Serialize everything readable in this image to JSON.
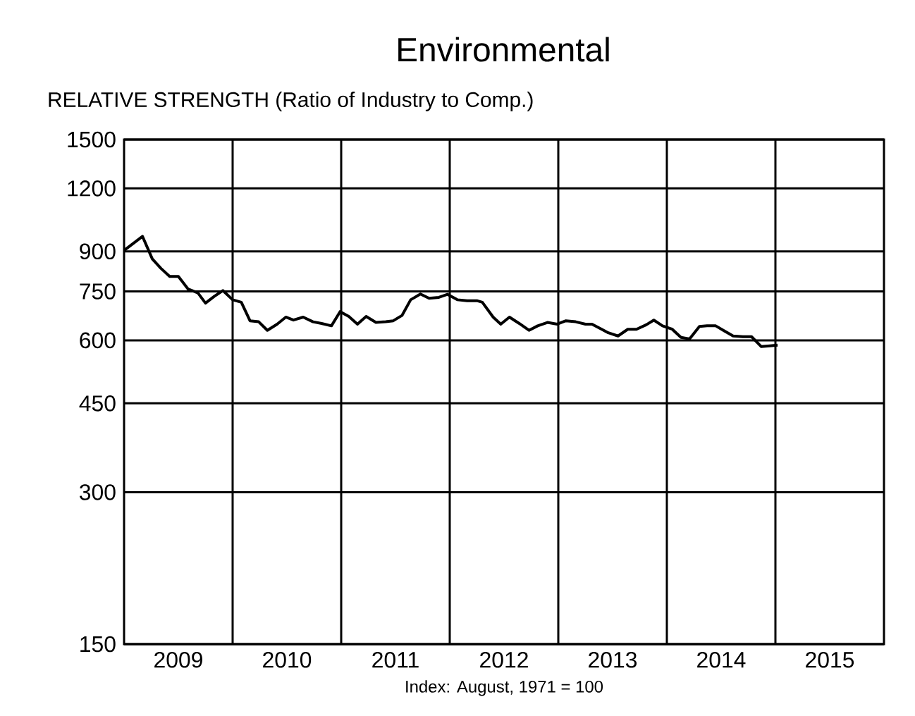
{
  "chart_data": {
    "type": "line",
    "title": "Environmental",
    "subtitle": "RELATIVE STRENGTH (Ratio of Industry to Comp.)",
    "xlabel": "Index:  August,  1971  =  100",
    "x": [
      2009.0,
      2009.17,
      2009.26,
      2009.34,
      2009.42,
      2009.5,
      2009.59,
      2009.68,
      2009.75,
      2009.83,
      2009.91,
      2010.0,
      2010.08,
      2010.16,
      2010.24,
      2010.32,
      2010.41,
      2010.49,
      2010.56,
      2010.65,
      2010.74,
      2010.82,
      2010.91,
      2010.99,
      2011.07,
      2011.15,
      2011.23,
      2011.32,
      2011.41,
      2011.48,
      2011.56,
      2011.64,
      2011.73,
      2011.81,
      2011.9,
      2011.98,
      2012.07,
      2012.16,
      2012.25,
      2012.3,
      2012.4,
      2012.47,
      2012.55,
      2012.64,
      2012.73,
      2012.81,
      2012.9,
      2012.99,
      2013.07,
      2013.16,
      2013.25,
      2013.31,
      2013.4,
      2013.46,
      2013.55,
      2013.64,
      2013.72,
      2013.81,
      2013.88,
      2013.96,
      2014.05,
      2014.13,
      2014.21,
      2014.3,
      2014.37,
      2014.45,
      2014.52,
      2014.61,
      2014.7,
      2014.78,
      2014.87,
      2014.95,
      2015.02
    ],
    "series": [
      {
        "color": "#000000",
        "values": [
          904,
          964,
          870,
          833,
          803,
          803,
          758,
          745,
          711,
          733,
          753,
          722,
          714,
          656,
          653,
          628,
          646,
          667,
          658,
          667,
          653,
          648,
          641,
          684,
          669,
          646,
          669,
          651,
          653,
          656,
          672,
          722,
          741,
          727,
          730,
          740,
          722,
          719,
          719,
          714,
          667,
          646,
          667,
          648,
          628,
          641,
          651,
          646,
          656,
          653,
          646,
          646,
          631,
          621,
          612,
          631,
          631,
          644,
          658,
          641,
          631,
          608,
          604,
          639,
          641,
          641,
          628,
          612,
          610,
          610,
          583,
          585,
          587
        ]
      }
    ],
    "log": true,
    "ylim": [
      150,
      1500
    ],
    "yticks": [
      150,
      300,
      450,
      600,
      750,
      900,
      1200,
      1500
    ],
    "xlim": [
      2009,
      2016
    ],
    "xticks": [
      {
        "value": 2009.5,
        "label": "2009"
      },
      {
        "value": 2010,
        "label": null
      },
      {
        "value": 2010.5,
        "label": "2010"
      },
      {
        "value": 2011,
        "label": null
      },
      {
        "value": 2011.5,
        "label": "2011"
      },
      {
        "value": 2012,
        "label": null
      },
      {
        "value": 2012.5,
        "label": "2012"
      },
      {
        "value": 2013,
        "label": null
      },
      {
        "value": 2013.5,
        "label": "2013"
      },
      {
        "value": 2014,
        "label": null
      },
      {
        "value": 2014.5,
        "label": "2014"
      },
      {
        "value": 2015,
        "label": null
      },
      {
        "value": 2015.5,
        "label": "2015"
      }
    ],
    "grid": true,
    "marker": "none",
    "line_style": "solid"
  }
}
